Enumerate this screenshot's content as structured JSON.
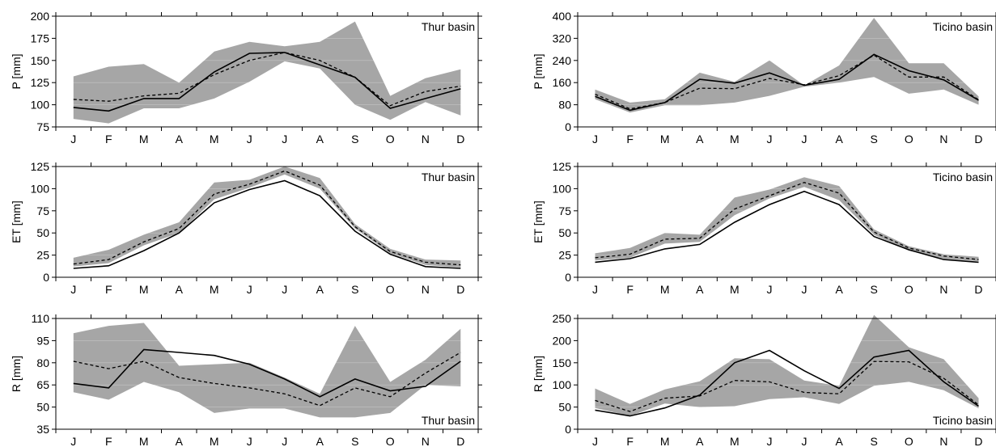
{
  "months": [
    "J",
    "F",
    "M",
    "A",
    "M",
    "J",
    "J",
    "A",
    "S",
    "O",
    "N",
    "D"
  ],
  "colors": {
    "band": "#a6a6a6",
    "line": "#000000",
    "grid": "#ffffff"
  },
  "chart_data": [
    {
      "type": "area",
      "label": "Thur basin",
      "label_pos": "top-right",
      "ylabel": "P [mm]",
      "ylim": [
        75,
        200
      ],
      "yticks": [
        75,
        100,
        125,
        150,
        175,
        200
      ],
      "band_upper": [
        132,
        143,
        146,
        125,
        160,
        171,
        166,
        171,
        194,
        110,
        130,
        140
      ],
      "band_lower": [
        84,
        79,
        96,
        96,
        107,
        126,
        149,
        141,
        100,
        83,
        103,
        88
      ],
      "series": [
        {
          "style": "solid",
          "values": [
            97,
            93,
            107,
            107,
            137,
            158,
            159,
            145,
            131,
            96,
            107,
            118
          ]
        },
        {
          "style": "dashed",
          "values": [
            106,
            104,
            110,
            113,
            134,
            150,
            159,
            150,
            131,
            99,
            115,
            121
          ]
        }
      ]
    },
    {
      "type": "area",
      "label": "Ticino basin",
      "label_pos": "top-right",
      "ylabel": "P [mm]",
      "ylim": [
        0,
        400
      ],
      "yticks": [
        0,
        80,
        160,
        240,
        320,
        400
      ],
      "band_upper": [
        135,
        88,
        100,
        196,
        163,
        240,
        150,
        222,
        394,
        230,
        230,
        110
      ],
      "band_lower": [
        100,
        52,
        78,
        78,
        88,
        112,
        145,
        160,
        180,
        120,
        135,
        80
      ],
      "series": [
        {
          "style": "solid",
          "values": [
            110,
            60,
            88,
            172,
            158,
            195,
            150,
            172,
            262,
            203,
            170,
            96
          ]
        },
        {
          "style": "dashed",
          "values": [
            118,
            65,
            88,
            140,
            138,
            175,
            152,
            185,
            259,
            180,
            180,
            98
          ]
        }
      ]
    },
    {
      "type": "area",
      "label": "Thur basin",
      "label_pos": "top-right",
      "ylabel": "ET [mm]",
      "ylim": [
        0,
        125
      ],
      "yticks": [
        0,
        25,
        50,
        75,
        100,
        125
      ],
      "band_upper": [
        22,
        31,
        48,
        62,
        107,
        110,
        125,
        112,
        60,
        32,
        20,
        19
      ],
      "band_lower": [
        12,
        16,
        36,
        50,
        88,
        101,
        116,
        100,
        55,
        27,
        14,
        11
      ],
      "series": [
        {
          "style": "solid",
          "values": [
            10,
            13,
            30,
            50,
            84,
            99,
            109,
            92,
            52,
            26,
            12,
            10
          ]
        },
        {
          "style": "dashed",
          "values": [
            15,
            20,
            40,
            55,
            94,
            105,
            120,
            104,
            57,
            29,
            17,
            14
          ]
        }
      ]
    },
    {
      "type": "area",
      "label": "Ticino basin",
      "label_pos": "top-right",
      "ylabel": "ET [mm]",
      "ylim": [
        0,
        125
      ],
      "yticks": [
        0,
        25,
        50,
        75,
        100,
        125
      ],
      "band_upper": [
        27,
        33,
        50,
        48,
        90,
        99,
        113,
        103,
        54,
        35,
        26,
        23
      ],
      "band_lower": [
        19,
        22,
        38,
        40,
        70,
        89,
        102,
        87,
        48,
        30,
        21,
        18
      ],
      "series": [
        {
          "style": "solid",
          "values": [
            17,
            21,
            32,
            37,
            62,
            82,
            97,
            82,
            46,
            31,
            20,
            17
          ]
        },
        {
          "style": "dashed",
          "values": [
            22,
            26,
            43,
            44,
            77,
            92,
            107,
            95,
            51,
            33,
            24,
            20
          ]
        }
      ]
    },
    {
      "type": "area",
      "label": "Thur basin",
      "label_pos": "bottom-right",
      "ylabel": "R [mm]",
      "ylim": [
        35,
        110
      ],
      "yticks": [
        35,
        50,
        65,
        80,
        95,
        110
      ],
      "band_upper": [
        100,
        105,
        107,
        78,
        79,
        80,
        70,
        59,
        105,
        67,
        82,
        103
      ],
      "band_lower": [
        60,
        55,
        67,
        60,
        46,
        49,
        49,
        43,
        43,
        46,
        65,
        64
      ],
      "series": [
        {
          "style": "solid",
          "values": [
            66,
            63,
            89,
            87,
            85,
            79,
            69,
            57,
            69,
            61,
            64,
            81
          ]
        },
        {
          "style": "dashed",
          "values": [
            81,
            76,
            81,
            70,
            66,
            63,
            59,
            51,
            63,
            57,
            73,
            87
          ]
        }
      ]
    },
    {
      "type": "area",
      "label": "Ticino basin",
      "label_pos": "bottom-right",
      "ylabel": "R [mm]",
      "ylim": [
        0,
        250
      ],
      "yticks": [
        0,
        50,
        100,
        150,
        200,
        250
      ],
      "band_upper": [
        92,
        57,
        90,
        108,
        160,
        158,
        110,
        98,
        258,
        185,
        158,
        70
      ],
      "band_lower": [
        48,
        30,
        58,
        50,
        52,
        68,
        72,
        57,
        98,
        107,
        88,
        47
      ],
      "series": [
        {
          "style": "solid",
          "values": [
            43,
            30,
            48,
            77,
            150,
            178,
            132,
            92,
            163,
            178,
            107,
            52
          ]
        },
        {
          "style": "dashed",
          "values": [
            65,
            40,
            70,
            75,
            110,
            107,
            83,
            80,
            153,
            152,
            115,
            55
          ]
        }
      ]
    }
  ]
}
